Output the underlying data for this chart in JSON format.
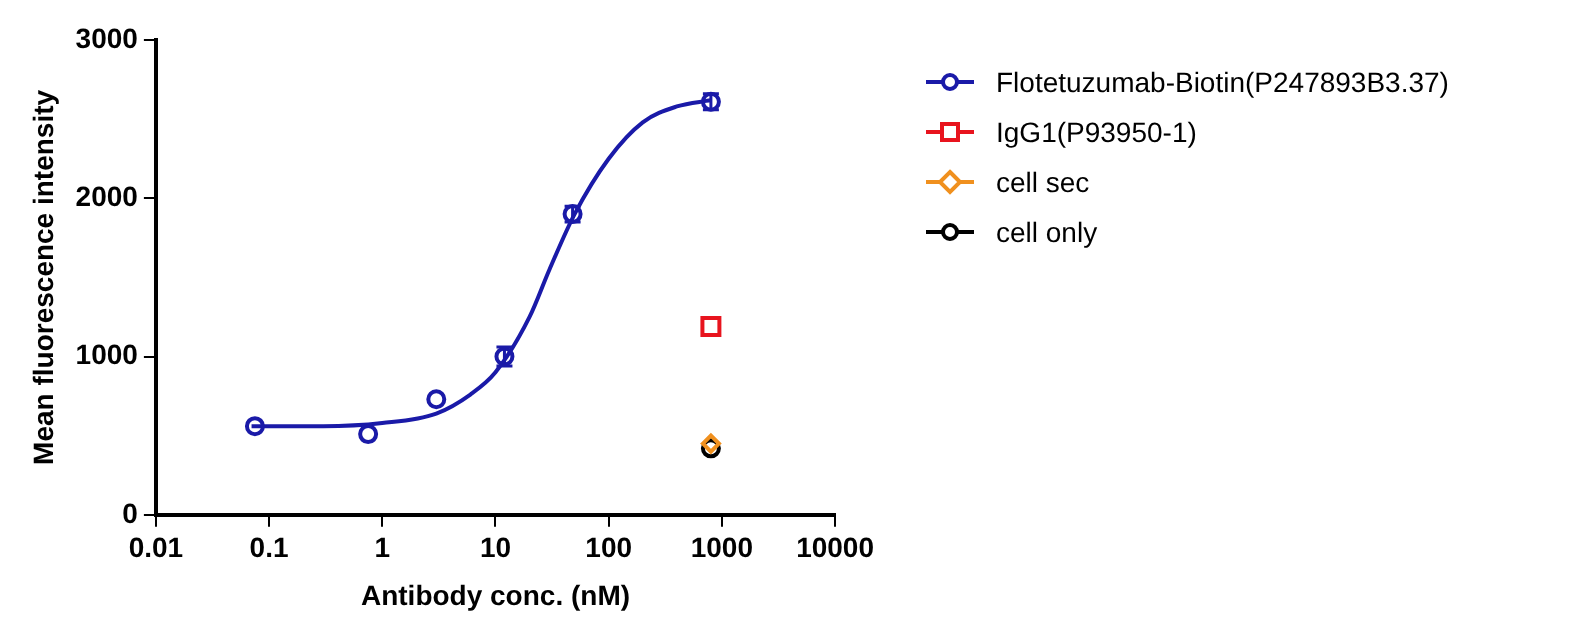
{
  "chart_data": {
    "type": "scatter",
    "xlabel": "Antibody conc. (nM)",
    "ylabel": "Mean fluorescence intensity",
    "log": "x",
    "xlim": [
      0.01,
      10000
    ],
    "xticks": [
      0.01,
      0.1,
      1,
      10,
      100,
      1000,
      10000
    ],
    "ylim": [
      0,
      3000
    ],
    "yticks": [
      0,
      1000,
      2000,
      3000
    ],
    "grid": false,
    "legend": "right",
    "series": [
      {
        "name": "Flotetuzumab-Biotin(P247893B3.37)",
        "marker": "circle",
        "color": "#1a1aa8",
        "x": [
          0.075,
          0.75,
          3,
          12,
          48,
          800
        ],
        "values": [
          560,
          510,
          730,
          1000,
          1900,
          2610
        ],
        "errors": [
          null,
          null,
          null,
          60,
          50,
          50
        ]
      },
      {
        "type": "line",
        "marker": "none",
        "color": "#1a1aa8",
        "x": [
          0.07,
          0.3,
          1,
          3,
          6,
          10,
          20,
          30,
          50,
          100,
          200,
          400,
          800
        ],
        "values": [
          560,
          560,
          580,
          640,
          760,
          900,
          1250,
          1550,
          1900,
          2250,
          2480,
          2580,
          2620
        ]
      },
      {
        "name": "IgG1(P93950-1)",
        "marker": "square",
        "color": "#e8141e",
        "x": [
          800
        ],
        "values": [
          1190
        ]
      },
      {
        "name": "cell sec",
        "marker": "diamond",
        "color": "#f0901e",
        "x": [
          800
        ],
        "values": [
          450
        ]
      },
      {
        "name": "cell only",
        "marker": "circle",
        "color": "#000000",
        "x": [
          800
        ],
        "values": [
          420
        ]
      }
    ]
  }
}
